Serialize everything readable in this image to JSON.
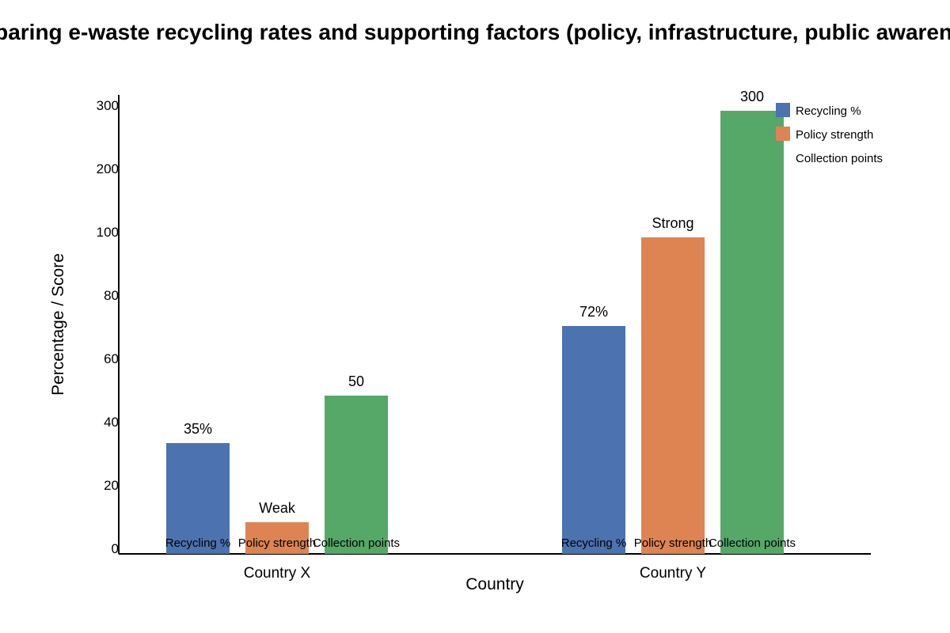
{
  "chart_data": {
    "type": "bar",
    "title": "Comparing e-waste recycling rates and supporting factors (policy, infrastructure, public awareness)",
    "xlabel": "Country",
    "ylabel": "Percentage / Score",
    "categories": [
      "Country X",
      "Country Y"
    ],
    "series": [
      {
        "name": "Recycling %",
        "values": [
          35,
          72
        ],
        "labels": [
          "35%",
          "72%"
        ],
        "color": "#4c72b0"
      },
      {
        "name": "Policy strength",
        "values": [
          10,
          100
        ],
        "labels": [
          "Weak",
          "Strong"
        ],
        "color": "#dd8452"
      },
      {
        "name": "Collection points",
        "values": [
          50,
          300
        ],
        "labels": [
          "50",
          "300"
        ],
        "color": "#55a868"
      }
    ],
    "y_ticks": [
      0,
      20,
      40,
      60,
      80,
      100,
      200,
      300
    ],
    "ylim": [
      0,
      300
    ],
    "legend": "top-right",
    "grid": false
  }
}
